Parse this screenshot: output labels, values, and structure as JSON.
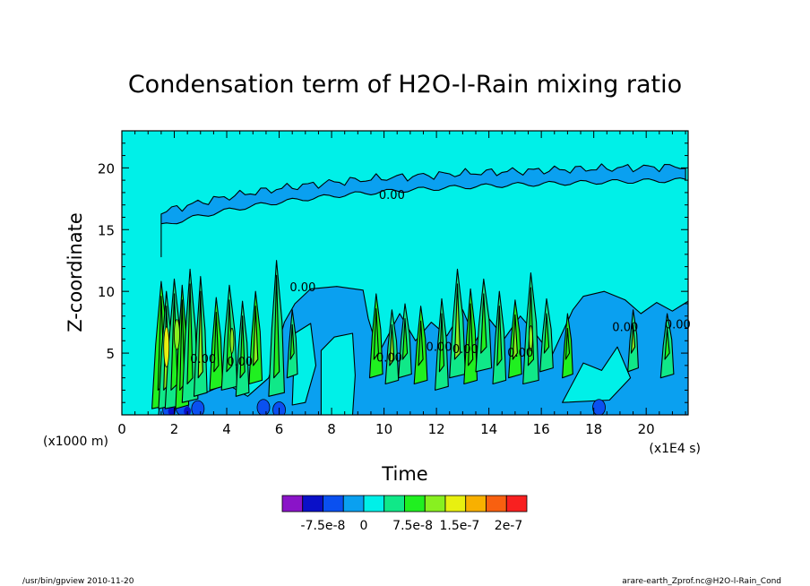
{
  "chart_data": {
    "type": "contour",
    "title": "Condensation term of H2O-l-Rain mixing ratio",
    "xlabel": "Time",
    "ylabel": "Z-coordinate",
    "x_unit": "(x1E4 s)",
    "y_unit": "(x1000 m)",
    "xlim": [
      0,
      21.6
    ],
    "ylim": [
      0,
      23
    ],
    "x_ticks": [
      0,
      2,
      4,
      6,
      8,
      10,
      12,
      14,
      16,
      18,
      20
    ],
    "y_ticks": [
      5,
      10,
      15,
      20
    ],
    "x_tick_labels": [
      "0",
      "2",
      "4",
      "6",
      "8",
      "10",
      "12",
      "14",
      "16",
      "18",
      "20"
    ],
    "y_tick_labels": [
      "5",
      "10",
      "15",
      "20"
    ],
    "background_level_color": "#00f0e8",
    "contour_labels": [
      {
        "text": "0.00",
        "x": 10.3,
        "y": 17.5
      },
      {
        "text": "0.00",
        "x": 6.9,
        "y": 10.0
      },
      {
        "text": "0.00",
        "x": 3.1,
        "y": 4.2
      },
      {
        "text": "0.00",
        "x": 4.5,
        "y": 4.0
      },
      {
        "text": "0.00",
        "x": 10.2,
        "y": 4.3
      },
      {
        "text": "0.00",
        "x": 12.1,
        "y": 5.2
      },
      {
        "text": "0.00",
        "x": 13.1,
        "y": 5.0
      },
      {
        "text": "0.00",
        "x": 15.2,
        "y": 4.7
      },
      {
        "text": "0.00",
        "x": 19.2,
        "y": 6.8
      },
      {
        "text": "0.00",
        "x": 21.2,
        "y": 7.0
      }
    ],
    "colorbar": {
      "colors": [
        "#8a14c8",
        "#0a10c8",
        "#0a50f0",
        "#0aa0f0",
        "#00f0e8",
        "#10e888",
        "#20f020",
        "#88f020",
        "#e8f010",
        "#f8b000",
        "#f86010",
        "#f82020"
      ],
      "labels": [
        "-7.5e-8",
        "0",
        "7.5e-8",
        "1.5e-7",
        "2e-7"
      ]
    }
  },
  "footer": {
    "left": "/usr/bin/gpview   2010-11-20",
    "right": "arare-earth_Zprof.nc@H2O-l-Rain_Cond"
  }
}
